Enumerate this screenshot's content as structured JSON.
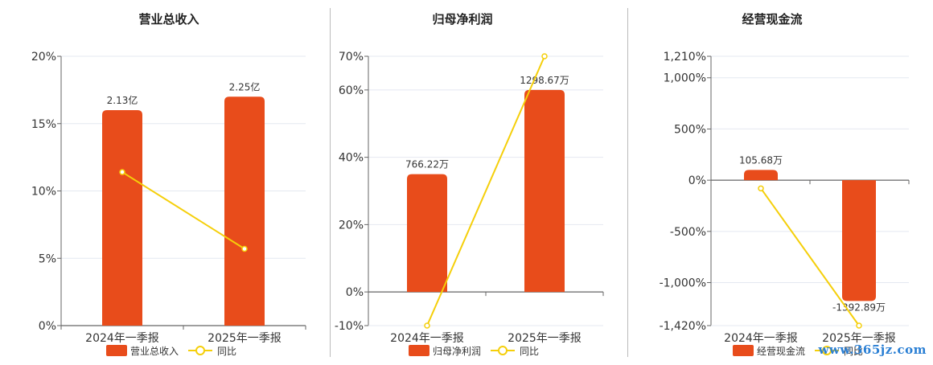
{
  "colors": {
    "bar": "#e84c1b",
    "line": "#f5cf0a",
    "grid": "#e4e8f0",
    "axis": "#666666"
  },
  "legend": {
    "line_label": "同比"
  },
  "watermark": "www.365jz.com",
  "chart_data": [
    {
      "type": "bar",
      "title": "营业总收入",
      "categories": [
        "2024年一季报",
        "2025年一季报"
      ],
      "series": [
        {
          "name": "营业总收入",
          "type": "bar",
          "values": [
            16,
            17
          ],
          "labels": [
            "2.13亿",
            "2.25亿"
          ]
        },
        {
          "name": "同比",
          "type": "line",
          "values": [
            11.4,
            5.7
          ]
        }
      ],
      "ylim": [
        0,
        20
      ],
      "yticks": [
        0,
        5,
        10,
        15,
        20
      ],
      "ytick_labels": [
        "0%",
        "5%",
        "10%",
        "15%",
        "20%"
      ],
      "grid": true,
      "legend_position": "bottom"
    },
    {
      "type": "bar",
      "title": "归母净利润",
      "categories": [
        "2024年一季报",
        "2025年一季报"
      ],
      "series": [
        {
          "name": "归母净利润",
          "type": "bar",
          "values": [
            35,
            60
          ],
          "labels": [
            "766.22万",
            "1298.67万"
          ]
        },
        {
          "name": "同比",
          "type": "line",
          "values": [
            -10,
            70
          ]
        }
      ],
      "ylim": [
        -10,
        70
      ],
      "yticks": [
        -10,
        0,
        20,
        40,
        60,
        70
      ],
      "ytick_labels": [
        "-10%",
        "0%",
        "20%",
        "40%",
        "60%",
        "70%"
      ],
      "grid": true,
      "legend_position": "bottom"
    },
    {
      "type": "bar",
      "title": "经营现金流",
      "categories": [
        "2024年一季报",
        "2025年一季报"
      ],
      "series": [
        {
          "name": "经营现金流",
          "type": "bar",
          "values": [
            100,
            -1180
          ],
          "labels": [
            "105.68万",
            "-1392.89万"
          ]
        },
        {
          "name": "同比",
          "type": "line",
          "values": [
            -80,
            -1420
          ]
        }
      ],
      "ylim": [
        -1420,
        1210
      ],
      "yticks": [
        -1420,
        -1000,
        -500,
        0,
        500,
        1000,
        1210
      ],
      "ytick_labels": [
        "-1,420%",
        "-1,000%",
        "-500%",
        "0%",
        "500%",
        "1,000%",
        "1,210%"
      ],
      "grid": true,
      "legend_position": "bottom"
    }
  ]
}
